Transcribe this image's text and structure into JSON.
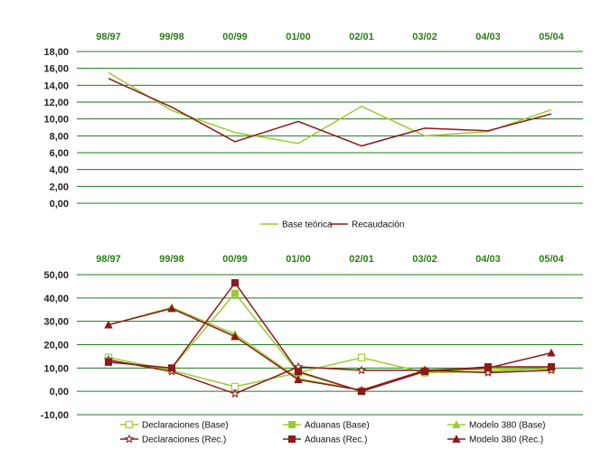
{
  "chart_data": [
    {
      "type": "line",
      "categories": [
        "98/97",
        "99/98",
        "00/99",
        "01/00",
        "02/01",
        "03/02",
        "04/03",
        "05/04"
      ],
      "ylim": [
        0,
        18
      ],
      "yticks": [
        "0,00",
        "2,00",
        "4,00",
        "6,00",
        "8,00",
        "10,00",
        "12,00",
        "14,00",
        "16,00",
        "18,00"
      ],
      "grid": true,
      "legend_position": "bottom",
      "series": [
        {
          "name": "Base teórica",
          "color": "#9acd32",
          "marker": "none",
          "values": [
            15.5,
            11.0,
            8.4,
            7.1,
            11.5,
            8.0,
            8.5,
            11.1
          ]
        },
        {
          "name": "Recaudación",
          "color": "#8b1a1a",
          "marker": "none",
          "values": [
            14.8,
            11.4,
            7.3,
            9.7,
            6.8,
            8.9,
            8.6,
            10.6
          ]
        }
      ]
    },
    {
      "type": "line",
      "categories": [
        "98/97",
        "99/98",
        "00/99",
        "01/00",
        "02/01",
        "03/02",
        "04/03",
        "05/04"
      ],
      "ylim": [
        -10,
        50
      ],
      "yticks": [
        "-10,00",
        "0,00",
        "10,00",
        "20,00",
        "30,00",
        "40,00",
        "50,00"
      ],
      "grid": true,
      "legend_position": "bottom",
      "series": [
        {
          "name": "Declaraciones (Base)",
          "color": "#9acd32",
          "marker": "hollow-square",
          "values": [
            14.5,
            9.0,
            2.0,
            8.0,
            14.5,
            8.0,
            8.5,
            10.0
          ]
        },
        {
          "name": "Aduanas (Base)",
          "color": "#9acd32",
          "marker": "square",
          "values": [
            13.0,
            10.0,
            42.0,
            8.0,
            0.0,
            9.0,
            10.0,
            10.5
          ]
        },
        {
          "name": "Modelo 380 (Base)",
          "color": "#9acd32",
          "marker": "triangle",
          "values": [
            28.5,
            36.0,
            24.5,
            5.5,
            0.5,
            8.5,
            9.5,
            9.5
          ]
        },
        {
          "name": "Declaraciones (Rec.)",
          "color": "#8b1a1a",
          "marker": "hollow-star",
          "values": [
            13.5,
            8.5,
            -1.0,
            10.5,
            9.0,
            9.0,
            8.0,
            9.0
          ]
        },
        {
          "name": "Aduanas (Rec.)",
          "color": "#8b1a1a",
          "marker": "square",
          "values": [
            12.5,
            10.0,
            46.5,
            8.5,
            0.0,
            8.5,
            10.5,
            10.5
          ]
        },
        {
          "name": "Modelo 380 (Rec.)",
          "color": "#8b1a1a",
          "marker": "triangle",
          "values": [
            28.5,
            35.5,
            23.5,
            5.0,
            0.5,
            9.0,
            10.0,
            16.5
          ]
        }
      ]
    }
  ]
}
